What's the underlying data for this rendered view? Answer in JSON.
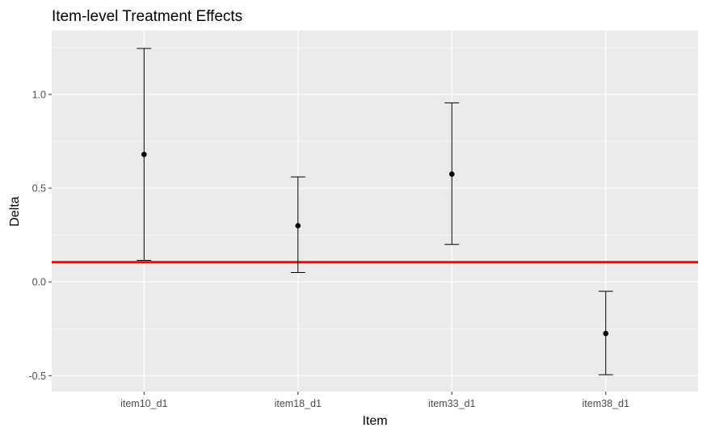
{
  "chart_data": {
    "type": "errorbar",
    "title": "Item-level Treatment Effects",
    "xlabel": "Item",
    "ylabel": "Delta",
    "categories": [
      "item10_d1",
      "item18_d1",
      "item33_d1",
      "item38_d1"
    ],
    "values": [
      0.68,
      0.3,
      0.575,
      -0.275
    ],
    "lower": [
      0.115,
      0.05,
      0.2,
      -0.495
    ],
    "upper": [
      1.245,
      0.56,
      0.955,
      -0.05
    ],
    "yticks": [
      -0.5,
      0.0,
      0.5,
      1.0
    ],
    "ytick_labels": [
      "-0.5",
      "0.0",
      "0.5",
      "1.0"
    ],
    "ylim": [
      -0.585,
      1.34
    ],
    "reference_line": {
      "y": 0.105,
      "color": "#ff0000"
    },
    "panel_background": "#ebebeb",
    "grid": true,
    "point_color": "#000000"
  }
}
